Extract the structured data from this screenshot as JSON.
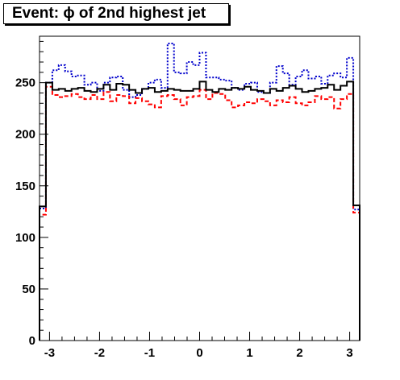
{
  "title": "Event: ϕ of 2nd highest jet",
  "chart_data": {
    "type": "line",
    "xlim": [
      -3.2,
      3.2
    ],
    "ylim": [
      0,
      295
    ],
    "xticks": [
      -3,
      -2,
      -1,
      0,
      1,
      2,
      3
    ],
    "yticks": [
      0,
      50,
      100,
      150,
      200,
      250
    ],
    "bins": 50,
    "series": [
      {
        "style": "solid",
        "color": "#000000",
        "values": [
          130,
          250,
          243,
          244,
          242,
          244,
          245,
          242,
          241,
          244,
          248,
          243,
          249,
          248,
          243,
          240,
          244,
          245,
          241,
          242,
          244,
          243,
          242,
          242,
          244,
          251,
          243,
          241,
          244,
          243,
          245,
          244,
          246,
          243,
          242,
          240,
          244,
          242,
          245,
          247,
          244,
          241,
          242,
          244,
          245,
          248,
          243,
          247,
          251,
          131
        ]
      },
      {
        "style": "dashed",
        "color": "#ff0000",
        "values": [
          122,
          246,
          238,
          236,
          237,
          239,
          236,
          234,
          238,
          234,
          241,
          232,
          238,
          237,
          230,
          235,
          232,
          229,
          226,
          237,
          238,
          234,
          228,
          236,
          237,
          243,
          234,
          240,
          239,
          233,
          226,
          228,
          231,
          230,
          234,
          232,
          228,
          233,
          231,
          236,
          230,
          228,
          231,
          237,
          234,
          236,
          225,
          234,
          239,
          124
        ]
      },
      {
        "style": "dotted",
        "color": "#0000cc",
        "values": [
          128,
          250,
          262,
          267,
          261,
          256,
          257,
          248,
          250,
          242,
          250,
          255,
          256,
          243,
          236,
          238,
          244,
          250,
          253,
          245,
          288,
          260,
          259,
          270,
          267,
          279,
          255,
          255,
          253,
          252,
          245,
          243,
          249,
          250,
          241,
          240,
          250,
          266,
          259,
          248,
          256,
          262,
          254,
          256,
          249,
          257,
          259,
          255,
          274,
          127
        ]
      }
    ]
  }
}
